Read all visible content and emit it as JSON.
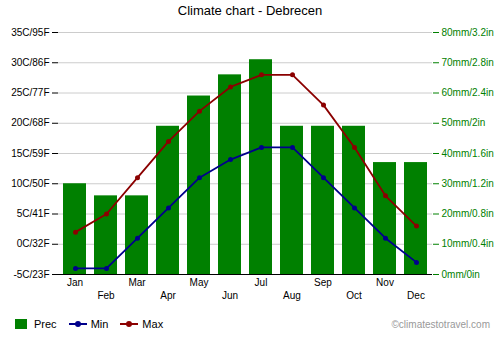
{
  "chart_data": {
    "type": "bar",
    "title": "Climate chart - Debrecen",
    "categories": [
      "Jan",
      "Feb",
      "Mar",
      "Apr",
      "May",
      "Jun",
      "Jul",
      "Aug",
      "Sep",
      "Oct",
      "Nov",
      "Dec"
    ],
    "series": [
      {
        "name": "Prec",
        "type": "bar",
        "axis": "y2",
        "color": "#008000",
        "values": [
          30,
          26,
          26,
          49,
          59,
          66,
          71,
          49,
          49,
          49,
          37,
          37
        ]
      },
      {
        "name": "Min",
        "type": "line",
        "marker": "circle",
        "color": "#00008B",
        "values": [
          -4,
          -4,
          1,
          6,
          11,
          14,
          16,
          16,
          11,
          6,
          1,
          -3
        ]
      },
      {
        "name": "Max",
        "type": "line",
        "marker": "circle",
        "color": "#8B0000",
        "values": [
          2,
          5,
          11,
          17,
          22,
          26,
          28,
          28,
          23,
          16,
          8,
          3
        ]
      }
    ],
    "ylim": [
      -5,
      35
    ],
    "yticks": [
      {
        "value": -5,
        "label": "-5C/23F"
      },
      {
        "value": 0,
        "label": "0C/32F"
      },
      {
        "value": 5,
        "label": "5C/41F"
      },
      {
        "value": 10,
        "label": "10C/50F"
      },
      {
        "value": 15,
        "label": "15C/59F"
      },
      {
        "value": 20,
        "label": "20C/68F"
      },
      {
        "value": 25,
        "label": "25C/77F"
      },
      {
        "value": 30,
        "label": "30C/86F"
      },
      {
        "value": 35,
        "label": "35C/95F"
      }
    ],
    "y2lim": [
      0,
      80
    ],
    "y2ticks": [
      {
        "value": 0,
        "label": "0mm/0in"
      },
      {
        "value": 10,
        "label": "10mm/0.4in"
      },
      {
        "value": 20,
        "label": "20mm/0.8in"
      },
      {
        "value": 30,
        "label": "30mm/1.2in"
      },
      {
        "value": 40,
        "label": "40mm/1.6in"
      },
      {
        "value": 50,
        "label": "50mm/2in"
      },
      {
        "value": 60,
        "label": "60mm/2.4in"
      },
      {
        "value": 70,
        "label": "70mm/2.8in"
      },
      {
        "value": 80,
        "label": "80mm/3.2in"
      }
    ],
    "grid": true,
    "legend": "lower left",
    "annotations": [
      "©climatestotravel.com"
    ]
  }
}
